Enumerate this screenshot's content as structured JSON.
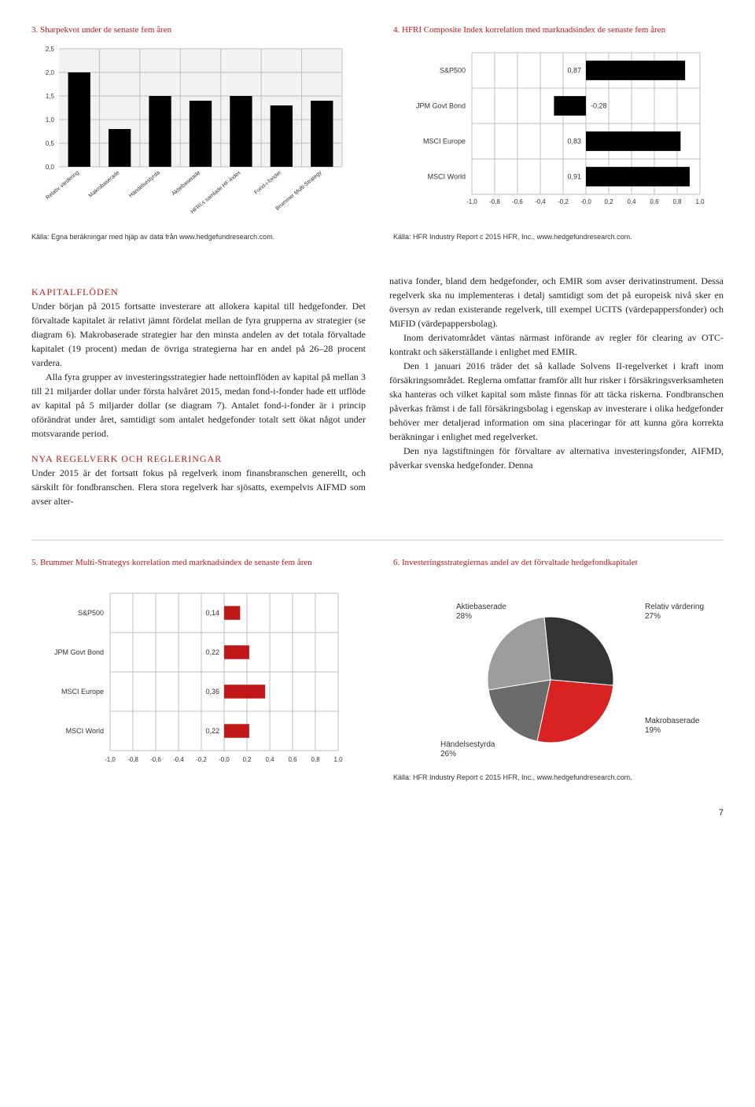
{
  "chart3": {
    "title": "3. Sharpekvot under de senaste fem åren",
    "type": "bar",
    "categories": [
      "Relativ värdering",
      "Makrobaserade",
      "Händelsestyrda",
      "Aktiebaserade",
      "HFRI:s samlade HF-index",
      "Fond-i-fonder",
      "Brummer Multi-Strategy"
    ],
    "values": [
      2.0,
      0.8,
      1.5,
      1.4,
      1.5,
      1.3,
      1.4
    ],
    "ylim": [
      0,
      2.5
    ],
    "ytick_step": 0.5,
    "bar_color": "#000000",
    "background_color": "#f2f2f2",
    "grid_color": "#bfbfbf",
    "label_fontsize": 8,
    "source": "Källa: Egna beräkningar med hjäp av data från www.hedgefundresearch.com."
  },
  "chart4": {
    "title": "4. HFRI Composite Index korrelation med marknadsindex de senaste fem åren",
    "type": "hbar",
    "categories": [
      "S&P500",
      "JPM Govt Bond",
      "MSCI Europe",
      "MSCI World"
    ],
    "values": [
      0.87,
      -0.28,
      0.83,
      0.91
    ],
    "xlim": [
      -1.0,
      1.0
    ],
    "xtick_step": 0.2,
    "bar_color": "#000000",
    "grid_color": "#bfbfbf",
    "label_fontsize": 8,
    "source": "Källa: HFR Industry Report c 2015 HFR, Inc., www.hedgefundresearch.com."
  },
  "body": {
    "h1": "KAPITALFLÖDEN",
    "p1": "Under början på 2015 fortsatte investerare att allokera kapital till hedgefonder. Det förvaltade kapitalet är relativt jämnt fördelat mellan de fyra grupperna av strategier (se diagram 6). Makrobaserade strategier har den minsta andelen av det totala förvaltade kapitalet (19 procent) medan de övriga strategierna har en andel på 26–28 procent vardera.",
    "p2": "Alla fyra grupper av investeringsstrategier hade nettoinflöden av kapital på mellan 3 till 21 miljarder dollar under första halvåret 2015, medan fond-i-fonder hade ett utflöde av kapital på 5 miljarder dollar (se diagram 7). Antalet fond-i-fonder är i princip oförändrat under året, samtidigt som antalet hedgefonder totalt sett ökat något under motsvarande period.",
    "h2": "NYA REGELVERK OCH REGLERINGAR",
    "p3": "Under 2015 är det fortsatt fokus på regelverk inom finansbranschen generellt, och särskilt för fondbranschen. Flera stora regelverk har sjösatts, exempelvis AIFMD som avser alter-",
    "p4": "nativa fonder, bland dem hedgefonder, och EMIR som avser derivatinstrument. Dessa regelverk ska nu implementeras i detalj samtidigt som det på europeisk nivå sker en översyn av redan existerande regelverk, till exempel UCITS (värdepappersfonder) och MiFID (värdepappersbolag).",
    "p5": "Inom derivatområdet väntas närmast införande av regler för clearing av OTC-kontrakt och säkerställande i enlighet med EMIR.",
    "p6": "Den 1 januari 2016 träder det så kallade Solvens II-regelverket i kraft inom försäkringsområdet. Reglerna omfattar framför allt hur risker i försäkringsverksamheten ska hanteras och vilket kapital som måste finnas för att täcka riskerna. Fondbranschen påverkas främst i de fall försäkringsbolag i egenskap av investerare i olika hedgefonder behöver mer detaljerad information om sina placeringar för att kunna göra korrekta beräkningar i enlighet med regelverket.",
    "p7": "Den nya lagstiftningen för förvaltare av alternativa investeringsfonder, AIFMD, påverkar svenska hedgefonder. Denna"
  },
  "chart5": {
    "title": "5. Brummer Multi-Strategys korrelation med marknadsindex de senaste fem åren",
    "type": "hbar",
    "categories": [
      "S&P500",
      "JPM Govt Bond",
      "MSCI Europe",
      "MSCI World"
    ],
    "values": [
      0.14,
      0.22,
      0.36,
      0.22
    ],
    "xlim": [
      -1.0,
      1.0
    ],
    "xtick_step": 0.2,
    "bar_color": "#c01818",
    "grid_color": "#bfbfbf",
    "label_fontsize": 8
  },
  "chart6": {
    "title": "6. Investeringsstrategiernas andel av det förvaltade hedgefondkapitalet",
    "type": "pie",
    "slices": [
      {
        "label": "Aktiebaserade",
        "value": 28,
        "color": "#333333"
      },
      {
        "label": "Relativ värdering",
        "value": 27,
        "color": "#d92323"
      },
      {
        "label": "Makrobaserade",
        "value": 19,
        "color": "#6b6b6b"
      },
      {
        "label": "Händelsestyrda",
        "value": 26,
        "color": "#9c9c9c"
      }
    ],
    "source": "Källa: HFR Industry Report c 2015 HFR, Inc., www.hedgefundresearch.com."
  },
  "page_number": "7"
}
